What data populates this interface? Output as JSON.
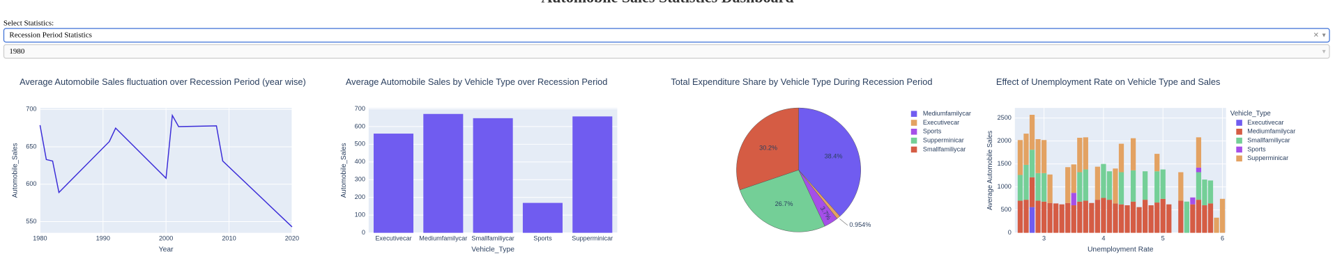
{
  "header": {
    "title": "Automobile Sales Statistics Dashboard"
  },
  "controls": {
    "label": "Select Statistics:",
    "statistics": "Recession Period Statistics",
    "year": "1980"
  },
  "chart_data": [
    {
      "type": "line",
      "title": "Average Automobile Sales fluctuation over Recession Period (year wise)",
      "x_label": "Year",
      "y_label": "Automobile_Sales",
      "x": [
        1980,
        1981,
        1982,
        1983,
        1991,
        1992,
        2000,
        2001,
        2002,
        2008,
        2009,
        2020
      ],
      "values": [
        679,
        633,
        631,
        589,
        657,
        675,
        608,
        692,
        677,
        678,
        631,
        543
      ],
      "color": "#3a2bd8",
      "xlim": [
        1980,
        2020
      ],
      "xticks": [
        1980,
        1990,
        2000,
        2010,
        2020
      ],
      "ylim": [
        535,
        702
      ],
      "yticks": [
        550,
        600,
        650,
        700
      ],
      "grid": true
    },
    {
      "type": "bar",
      "title": "Average Automobile Sales by Vehicle Type over Recession Period",
      "x_label": "Vehicle_Type",
      "y_label": "Automobile_Sales",
      "categories": [
        "Executivecar",
        "Mediumfamilycar",
        "Smallfamiliycar",
        "Sports",
        "Supperminicar"
      ],
      "values": [
        560,
        671,
        647,
        169,
        657
      ],
      "color": "#705cf0",
      "ylim": [
        0,
        705
      ],
      "yticks": [
        0,
        100,
        200,
        300,
        400,
        500,
        600,
        700
      ],
      "grid": true
    },
    {
      "type": "pie",
      "title": "Total Expenditure Share by Vehicle Type During Recession Period",
      "categories": [
        "Mediumfamilycar",
        "Executivecar",
        "Sports",
        "Supperminicar",
        "Smallfamiliycar"
      ],
      "values": [
        38.4,
        0.954,
        3.7,
        26.7,
        30.2
      ],
      "value_labels": [
        "38.4%",
        "0.954%",
        "3.7%",
        "26.7%",
        "30.2%"
      ],
      "colors": [
        "#705cf0",
        "#e3a262",
        "#a54fe8",
        "#74cf97",
        "#d55c44"
      ],
      "legend": "right"
    },
    {
      "type": "bar",
      "stacked": true,
      "title": "Effect of Unemployment Rate on Vehicle Type and Sales",
      "x_label": "Unemployment Rate",
      "y_label": "Average Automobile Sales",
      "legend_title": "Vehicle_Type",
      "x": [
        2.6,
        2.7,
        2.8,
        2.9,
        3.0,
        3.1,
        3.2,
        3.3,
        3.4,
        3.5,
        3.6,
        3.7,
        3.8,
        3.9,
        4.0,
        4.1,
        4.2,
        4.3,
        4.4,
        4.5,
        4.6,
        4.7,
        4.8,
        4.9,
        5.0,
        5.1,
        5.3,
        5.4,
        5.5,
        5.6,
        5.7,
        5.8,
        5.9,
        6.0
      ],
      "series": [
        {
          "name": "Executivecar",
          "color": "#705cf0",
          "values": [
            null,
            null,
            560,
            null,
            null,
            null,
            null,
            null,
            null,
            null,
            null,
            null,
            null,
            null,
            null,
            null,
            null,
            null,
            null,
            null,
            null,
            null,
            null,
            null,
            null,
            null,
            null,
            null,
            null,
            null,
            null,
            null,
            null,
            null
          ]
        },
        {
          "name": "Mediumfamilycar",
          "color": "#d55c44",
          "values": [
            700,
            720,
            650,
            700,
            680,
            650,
            640,
            620,
            650,
            600,
            680,
            700,
            650,
            720,
            760,
            720,
            640,
            620,
            600,
            680,
            560,
            720,
            600,
            660,
            740,
            620,
            700,
            null,
            620,
            720,
            600,
            640,
            null,
            null
          ]
        },
        {
          "name": "Smallfamiliycar",
          "color": "#74cf97",
          "values": [
            560,
            760,
            600,
            600,
            620,
            null,
            null,
            null,
            null,
            null,
            640,
            680,
            null,
            null,
            740,
            620,
            null,
            700,
            null,
            680,
            null,
            620,
            null,
            680,
            640,
            null,
            null,
            680,
            null,
            600,
            560,
            500,
            null,
            null
          ]
        },
        {
          "name": "Sports",
          "color": "#a54fe8",
          "values": [
            null,
            null,
            null,
            null,
            null,
            null,
            null,
            null,
            null,
            270,
            null,
            null,
            null,
            null,
            null,
            null,
            null,
            null,
            null,
            null,
            null,
            null,
            null,
            null,
            null,
            null,
            null,
            null,
            150,
            100,
            null,
            null,
            null,
            null
          ]
        },
        {
          "name": "Supperminicar",
          "color": "#e3a262",
          "values": [
            760,
            680,
            760,
            740,
            720,
            620,
            null,
            null,
            780,
            620,
            750,
            700,
            null,
            720,
            null,
            null,
            760,
            620,
            null,
            700,
            null,
            null,
            null,
            380,
            null,
            null,
            620,
            null,
            null,
            660,
            null,
            null,
            330,
            740
          ]
        }
      ],
      "xlim": [
        2.51,
        6.06
      ],
      "xticks": [
        3,
        4,
        5,
        6
      ],
      "ylim": [
        0,
        2720
      ],
      "yticks": [
        0,
        500,
        1000,
        1500,
        2000,
        2500
      ],
      "grid": true,
      "legend": "right"
    }
  ]
}
